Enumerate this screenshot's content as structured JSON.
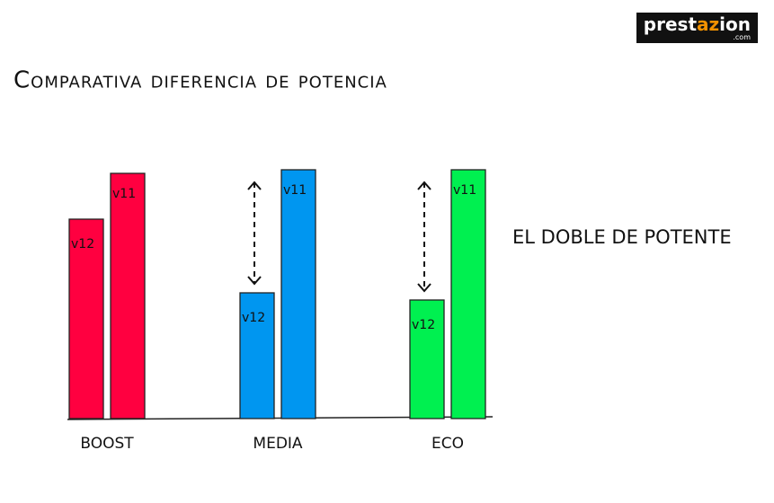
{
  "brand": {
    "parts": [
      "prest",
      "az",
      "ion"
    ],
    "domain": ".com"
  },
  "chart_data": {
    "type": "bar",
    "title": "Comparativa diferencia de potencia",
    "annotation": "EL DOBLE DE POTENTE",
    "categories": [
      "BOOST",
      "MEDIA",
      "ECO"
    ],
    "colors": [
      "#ff0040",
      "#0096f0",
      "#00f050"
    ],
    "series": [
      {
        "name": "v12",
        "values": [
          222,
          140,
          132
        ]
      },
      {
        "name": "v11",
        "values": [
          273,
          277,
          277
        ]
      }
    ],
    "ylim": [
      0,
      300
    ]
  }
}
